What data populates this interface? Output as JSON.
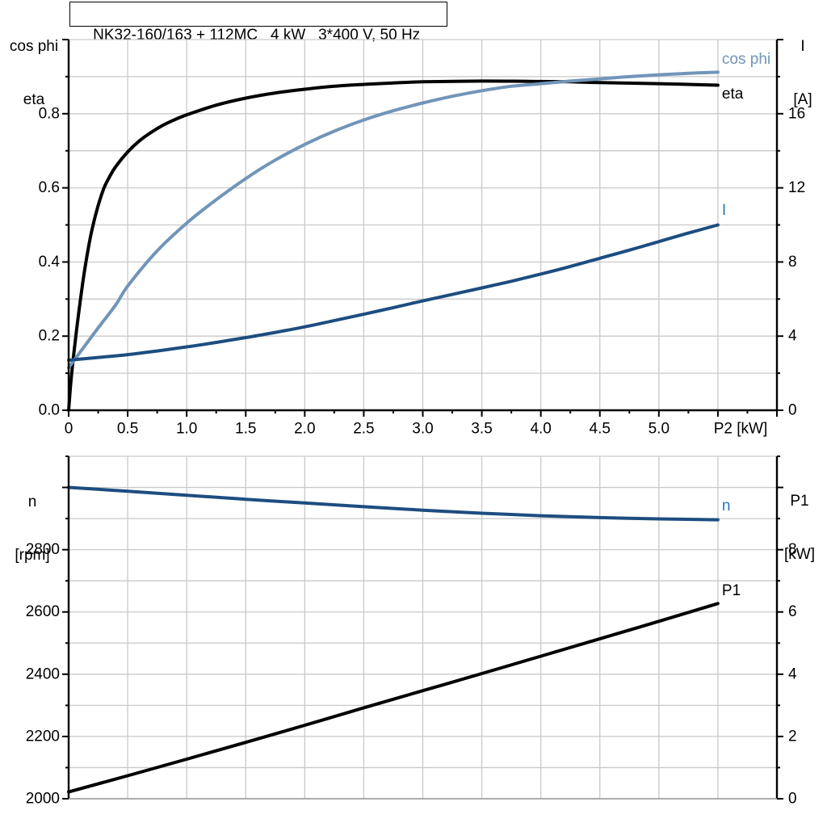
{
  "page": {
    "background": "#ffffff",
    "grid_color": "#c9c9c9",
    "axis_color": "#000000"
  },
  "chart_data": [
    {
      "type": "line",
      "title": "NK32-160/163 + 112MC   4 kW   3*400 V, 50 Hz",
      "x_axis": {
        "label": "P2 [kW]",
        "min": 0,
        "max": 6,
        "major_step": 0.5,
        "minor_step": 0.25,
        "tick_labels": [
          "0",
          "0.5",
          "1.0",
          "1.5",
          "2.0",
          "2.5",
          "3.0",
          "3.5",
          "4.0",
          "4.5",
          "5.0"
        ]
      },
      "y_left": {
        "label_lines": [
          "cos phi",
          "eta"
        ],
        "min": 0,
        "max": 1.0,
        "grid_step": 0.1,
        "major_step": 0.2,
        "tick_labels": [
          "0.0",
          "0.2",
          "0.4",
          "0.6",
          "0.8"
        ]
      },
      "y_right": {
        "label_lines": [
          "I",
          "[A]"
        ],
        "min": 0,
        "max": 20,
        "minor_step": 2,
        "major_step": 4,
        "tick_labels": [
          "0",
          "4",
          "8",
          "12",
          "16"
        ]
      },
      "series": [
        {
          "name": "eta",
          "axis": "left",
          "color": "#000000",
          "label_color": "#000000",
          "points": [
            [
              0,
              0
            ],
            [
              0.02,
              0.08
            ],
            [
              0.05,
              0.17
            ],
            [
              0.08,
              0.25
            ],
            [
              0.12,
              0.345
            ],
            [
              0.16,
              0.425
            ],
            [
              0.2,
              0.49
            ],
            [
              0.25,
              0.552
            ],
            [
              0.3,
              0.6
            ],
            [
              0.35,
              0.632
            ],
            [
              0.4,
              0.658
            ],
            [
              0.5,
              0.697
            ],
            [
              0.6,
              0.727
            ],
            [
              0.7,
              0.75
            ],
            [
              0.8,
              0.769
            ],
            [
              0.9,
              0.784
            ],
            [
              1.0,
              0.797
            ],
            [
              1.25,
              0.823
            ],
            [
              1.5,
              0.842
            ],
            [
              1.75,
              0.856
            ],
            [
              2.0,
              0.866
            ],
            [
              2.25,
              0.874
            ],
            [
              2.5,
              0.879
            ],
            [
              2.75,
              0.883
            ],
            [
              3.0,
              0.886
            ],
            [
              3.5,
              0.888
            ],
            [
              4.0,
              0.887
            ],
            [
              4.25,
              0.886
            ],
            [
              4.5,
              0.884
            ],
            [
              5.0,
              0.881
            ],
            [
              5.5,
              0.877
            ]
          ]
        },
        {
          "name": "cos phi",
          "axis": "left",
          "color": "#7195b9",
          "label_color": "#7195b9",
          "points": [
            [
              0,
              0.115
            ],
            [
              0.1,
              0.158
            ],
            [
              0.25,
              0.222
            ],
            [
              0.4,
              0.285
            ],
            [
              0.5,
              0.335
            ],
            [
              0.75,
              0.43
            ],
            [
              1.0,
              0.505
            ],
            [
              1.25,
              0.568
            ],
            [
              1.5,
              0.625
            ],
            [
              1.75,
              0.675
            ],
            [
              2.0,
              0.717
            ],
            [
              2.25,
              0.753
            ],
            [
              2.5,
              0.783
            ],
            [
              2.75,
              0.808
            ],
            [
              3.0,
              0.829
            ],
            [
              3.25,
              0.847
            ],
            [
              3.5,
              0.862
            ],
            [
              3.75,
              0.874
            ],
            [
              4.0,
              0.881
            ],
            [
              4.25,
              0.888
            ],
            [
              4.5,
              0.894
            ],
            [
              4.75,
              0.9
            ],
            [
              5.0,
              0.905
            ],
            [
              5.25,
              0.909
            ],
            [
              5.5,
              0.912
            ]
          ]
        },
        {
          "name": "I",
          "axis": "right",
          "color": "#1d4d80",
          "label_color": "#2e74b5",
          "points": [
            [
              0,
              2.7
            ],
            [
              0.25,
              2.85
            ],
            [
              0.5,
              3.0
            ],
            [
              0.75,
              3.2
            ],
            [
              1.0,
              3.42
            ],
            [
              1.25,
              3.66
            ],
            [
              1.5,
              3.92
            ],
            [
              1.75,
              4.2
            ],
            [
              2.0,
              4.5
            ],
            [
              2.25,
              4.84
            ],
            [
              2.5,
              5.18
            ],
            [
              2.75,
              5.54
            ],
            [
              3.0,
              5.9
            ],
            [
              3.25,
              6.25
            ],
            [
              3.5,
              6.6
            ],
            [
              3.75,
              6.96
            ],
            [
              4.0,
              7.35
            ],
            [
              4.25,
              7.76
            ],
            [
              4.5,
              8.2
            ],
            [
              4.75,
              8.64
            ],
            [
              5.0,
              9.1
            ],
            [
              5.25,
              9.56
            ],
            [
              5.5,
              10.0
            ]
          ]
        }
      ]
    },
    {
      "type": "line",
      "title": "",
      "x_axis": {
        "label": "",
        "min": 0,
        "max": 6,
        "major_step": 0.5,
        "minor_step": 0.5,
        "tick_labels": []
      },
      "y_left": {
        "label_lines": [
          "n",
          "[rpm]"
        ],
        "min": 2000,
        "max": 3100,
        "grid_step": 100,
        "major_step": 200,
        "tick_labels": [
          "2000",
          "2200",
          "2400",
          "2600",
          "2800"
        ]
      },
      "y_right": {
        "label_lines": [
          "P1",
          "[kW]"
        ],
        "min": 0,
        "max": 11,
        "minor_step": 1,
        "major_step": 2,
        "tick_labels": [
          "0",
          "2",
          "4",
          "6",
          "8"
        ]
      },
      "series": [
        {
          "name": "n",
          "axis": "left",
          "color": "#1d4d80",
          "label_color": "#2e74b5",
          "points": [
            [
              0,
              3000
            ],
            [
              0.5,
              2988
            ],
            [
              1.0,
              2975
            ],
            [
              1.5,
              2962
            ],
            [
              2.0,
              2950
            ],
            [
              2.5,
              2938
            ],
            [
              3.0,
              2927
            ],
            [
              3.5,
              2917
            ],
            [
              4.0,
              2909
            ],
            [
              4.5,
              2903
            ],
            [
              5.0,
              2899
            ],
            [
              5.5,
              2896
            ]
          ]
        },
        {
          "name": "P1",
          "axis": "right",
          "color": "#000000",
          "label_color": "#000000",
          "points": [
            [
              0,
              0.22
            ],
            [
              0.5,
              0.74
            ],
            [
              1.0,
              1.27
            ],
            [
              1.5,
              1.81
            ],
            [
              2.0,
              2.36
            ],
            [
              2.5,
              2.92
            ],
            [
              3.0,
              3.47
            ],
            [
              3.5,
              4.02
            ],
            [
              4.0,
              4.58
            ],
            [
              4.5,
              5.14
            ],
            [
              5.0,
              5.7
            ],
            [
              5.5,
              6.27
            ]
          ]
        }
      ]
    }
  ]
}
